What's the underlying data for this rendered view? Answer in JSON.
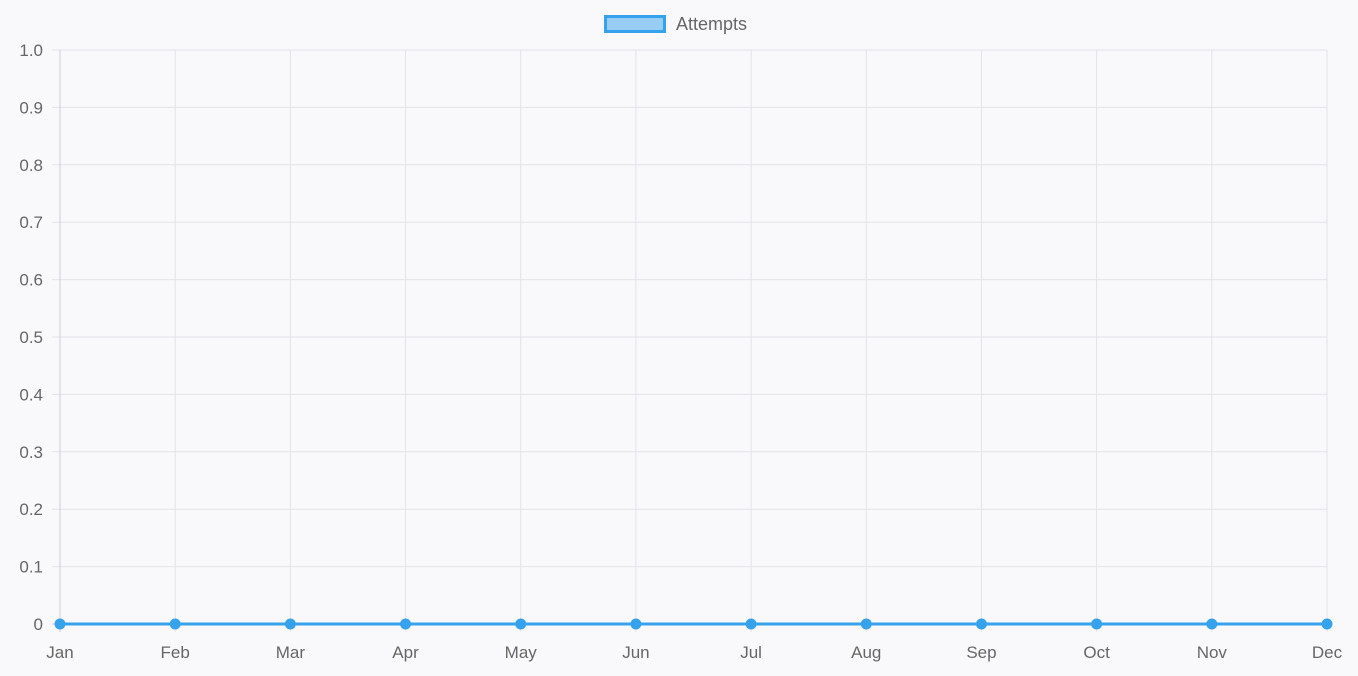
{
  "chart_data": {
    "type": "line",
    "categories": [
      "Jan",
      "Feb",
      "Mar",
      "Apr",
      "May",
      "Jun",
      "Jul",
      "Aug",
      "Sep",
      "Oct",
      "Nov",
      "Dec"
    ],
    "series": [
      {
        "name": "Attempts",
        "values": [
          0,
          0,
          0,
          0,
          0,
          0,
          0,
          0,
          0,
          0,
          0,
          0
        ],
        "color": "#36a2eb",
        "fill": "rgba(54,162,235,0.5)"
      }
    ],
    "y_ticks": [
      "1.0",
      "0.9",
      "0.8",
      "0.7",
      "0.6",
      "0.5",
      "0.4",
      "0.3",
      "0.2",
      "0.1",
      "0"
    ],
    "ylim": [
      0,
      1.0
    ],
    "grid": true,
    "legend_position": "top-center"
  },
  "legend": {
    "label": "Attempts"
  }
}
